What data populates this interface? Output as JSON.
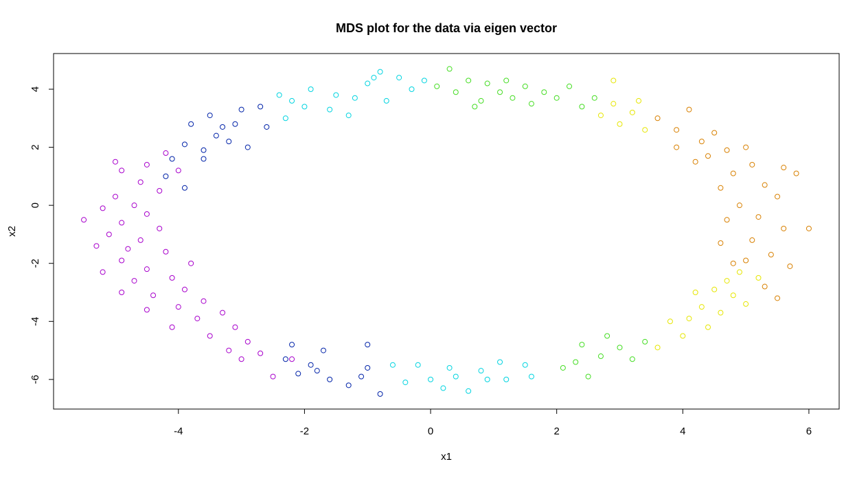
{
  "chart_data": {
    "type": "scatter",
    "title": "MDS plot for the data via eigen vector",
    "x_label": "x1",
    "y_label": "x2",
    "xlim": [
      -5.98,
      6.48
    ],
    "ylim": [
      -7.02,
      5.23
    ],
    "xticks": [
      -4,
      -2,
      0,
      2,
      4,
      6
    ],
    "yticks": [
      -6,
      -4,
      -2,
      0,
      2,
      4
    ],
    "series": [
      {
        "color": "#a800cc",
        "x": [
          -4.2,
          -4.5,
          -4.0,
          -4.6,
          -4.9,
          -4.3,
          -5.0,
          -4.7,
          -5.2,
          -4.5,
          -5.5,
          -4.9,
          -4.3,
          -5.1,
          -4.6,
          -5.3,
          -4.8,
          -4.2,
          -4.9,
          -5.2,
          -4.5,
          -4.7,
          -4.1,
          -4.9,
          -4.4,
          -3.9,
          -4.5,
          -4.0,
          -3.6,
          -4.1,
          -3.7,
          -3.3,
          -3.5,
          -3.1,
          -2.9,
          -3.2,
          -2.7,
          -2.5,
          -2.2,
          -3.0,
          -5.0,
          -3.8
        ],
        "y": [
          1.8,
          1.4,
          1.2,
          0.8,
          1.2,
          0.5,
          0.3,
          0.0,
          -0.1,
          -0.3,
          -0.5,
          -0.6,
          -0.8,
          -1.0,
          -1.2,
          -1.4,
          -1.5,
          -1.6,
          -1.9,
          -2.3,
          -2.2,
          -2.6,
          -2.5,
          -3.0,
          -3.1,
          -2.9,
          -3.6,
          -3.5,
          -3.3,
          -4.2,
          -3.9,
          -3.7,
          -4.5,
          -4.2,
          -4.7,
          -5.0,
          -5.1,
          -5.9,
          -5.3,
          -5.3,
          1.5,
          -2.0
        ]
      },
      {
        "color": "#0022a8",
        "x": [
          -3.9,
          -3.6,
          -4.1,
          -3.8,
          -3.4,
          -3.2,
          -3.5,
          -3.1,
          -3.0,
          -2.9,
          -2.7,
          -2.6,
          -3.6,
          -3.9,
          -4.2,
          -3.3,
          -2.3,
          -2.1,
          -1.8,
          -1.7,
          -1.6,
          -1.3,
          -1.0,
          -1.0,
          -0.8,
          -1.1,
          -2.2,
          -1.9
        ],
        "y": [
          2.1,
          1.9,
          1.6,
          2.8,
          2.4,
          2.2,
          3.1,
          2.8,
          3.3,
          2.0,
          3.4,
          2.7,
          1.6,
          0.6,
          1.0,
          2.7,
          -5.3,
          -5.8,
          -5.7,
          -5.0,
          -6.0,
          -6.2,
          -4.8,
          -5.6,
          -6.5,
          -5.9,
          -4.8,
          -5.5
        ]
      },
      {
        "color": "#00d4e0",
        "x": [
          -2.4,
          -2.2,
          -2.0,
          -1.9,
          -1.6,
          -1.5,
          -1.2,
          -1.0,
          -0.8,
          -0.7,
          -0.5,
          -0.3,
          -0.1,
          -2.3,
          -1.3,
          -0.9,
          -0.6,
          -0.4,
          -0.2,
          0,
          0.2,
          0.3,
          0.4,
          0.6,
          0.8,
          1.1,
          1.2,
          1.5,
          1.6,
          0.9
        ],
        "y": [
          3.8,
          3.6,
          3.4,
          4.0,
          3.3,
          3.8,
          3.7,
          4.2,
          4.6,
          3.6,
          4.4,
          4.0,
          4.3,
          3.0,
          3.1,
          4.4,
          -5.5,
          -6.1,
          -5.5,
          -6.0,
          -6.3,
          -5.6,
          -5.9,
          -6.4,
          -5.7,
          -5.4,
          -6.0,
          -5.5,
          -5.9,
          -6.0
        ]
      },
      {
        "color": "#44dd22",
        "x": [
          0.1,
          0.3,
          0.4,
          0.6,
          0.8,
          0.9,
          1.1,
          1.3,
          1.5,
          1.6,
          1.8,
          2.0,
          2.2,
          2.4,
          2.6,
          0.7,
          1.2,
          2.1,
          2.3,
          2.5,
          2.7,
          2.8,
          3.0,
          3.2,
          3.4,
          2.4
        ],
        "y": [
          4.1,
          4.7,
          3.9,
          4.3,
          3.6,
          4.2,
          3.9,
          3.7,
          4.1,
          3.5,
          3.9,
          3.7,
          4.1,
          3.4,
          3.7,
          3.4,
          4.3,
          -5.6,
          -5.4,
          -5.9,
          -5.2,
          -4.5,
          -4.9,
          -5.3,
          -4.7,
          -4.8
        ]
      },
      {
        "color": "#e6e600",
        "x": [
          2.7,
          2.9,
          3.0,
          3.2,
          2.9,
          3.4,
          3.3,
          3.6,
          3.8,
          4.0,
          4.1,
          4.3,
          4.4,
          4.5,
          4.6,
          4.7,
          4.8,
          4.9,
          4.2,
          5.0,
          5.2
        ],
        "y": [
          3.1,
          3.5,
          2.8,
          3.2,
          4.3,
          2.6,
          3.6,
          -4.9,
          -4.0,
          -4.5,
          -3.9,
          -3.5,
          -4.2,
          -2.9,
          -3.7,
          -2.6,
          -3.1,
          -2.3,
          -3.0,
          -3.4,
          -2.5
        ]
      },
      {
        "color": "#d88000",
        "x": [
          3.6,
          3.9,
          4.1,
          4.3,
          4.5,
          4.4,
          4.7,
          4.8,
          5.0,
          5.1,
          4.6,
          5.3,
          4.9,
          5.5,
          5.2,
          4.7,
          5.6,
          5.1,
          4.6,
          5.4,
          5.0,
          5.7,
          4.8,
          5.3,
          5.5,
          6.0,
          5.8,
          5.6,
          3.9,
          4.2
        ],
        "y": [
          3.0,
          2.6,
          3.3,
          2.2,
          2.5,
          1.7,
          1.9,
          1.1,
          2.0,
          1.4,
          0.6,
          0.7,
          0.0,
          0.3,
          -0.4,
          -0.5,
          -0.8,
          -1.2,
          -1.3,
          -1.7,
          -1.9,
          -2.1,
          -2.0,
          -2.8,
          -3.2,
          -0.8,
          1.1,
          1.3,
          2.0,
          1.5
        ]
      }
    ]
  }
}
